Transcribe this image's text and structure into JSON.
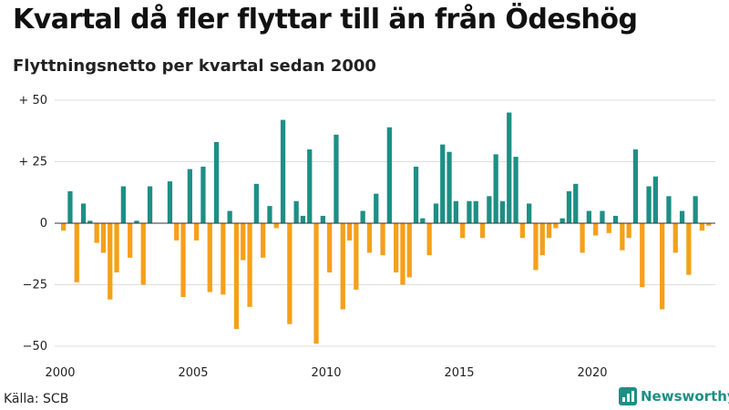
{
  "header": {
    "title": "Kvartal då fler flyttar till än från Ödeshög",
    "subtitle": "Flyttningsnetto per kvartal sedan 2000"
  },
  "footer": {
    "source": "Källa: SCB",
    "brand": "Newsworthy"
  },
  "colors": {
    "positive": "#1d8f85",
    "negative": "#f5a01a",
    "gridline": "#dddddd",
    "zero_line": "#333333"
  },
  "chart_data": {
    "type": "bar",
    "title": "Kvartal då fler flyttar till än från Ödeshög",
    "subtitle": "Flyttningsnetto per kvartal sedan 2000",
    "xlabel": "",
    "ylabel": "",
    "x_start": "2000 Q1",
    "frequency": "quarterly",
    "ylim": [
      -50,
      50
    ],
    "yticks": [
      50,
      25,
      0,
      -25,
      -50
    ],
    "ytick_labels": [
      "+ 50",
      "+ 25",
      "0",
      "−25",
      "−50"
    ],
    "xticks": [
      2000,
      2005,
      2010,
      2015,
      2020
    ],
    "xtick_labels": [
      "2000",
      "2005",
      "2010",
      "2015",
      "2020"
    ],
    "grid": true,
    "values": [
      -3,
      13,
      -24,
      8,
      1,
      -8,
      -12,
      -31,
      -20,
      15,
      -14,
      1,
      -25,
      15,
      0,
      0,
      17,
      -7,
      -30,
      22,
      -7,
      23,
      -28,
      33,
      -29,
      5,
      -43,
      -15,
      -34,
      16,
      -14,
      7,
      -2,
      42,
      -41,
      9,
      3,
      30,
      -49,
      3,
      -20,
      36,
      -35,
      -7,
      -27,
      5,
      -12,
      12,
      -13,
      39,
      -20,
      -25,
      -22,
      23,
      2,
      -13,
      8,
      32,
      29,
      9,
      -6,
      9,
      9,
      -6,
      11,
      28,
      9,
      45,
      27,
      -6,
      8,
      -19,
      -13,
      -6,
      -2,
      2,
      13,
      16,
      -12,
      5,
      -5,
      5,
      -4,
      3,
      -11,
      -6,
      30,
      -26,
      15,
      19,
      -35,
      11,
      -12,
      5,
      -21,
      11,
      -3,
      -1
    ]
  }
}
